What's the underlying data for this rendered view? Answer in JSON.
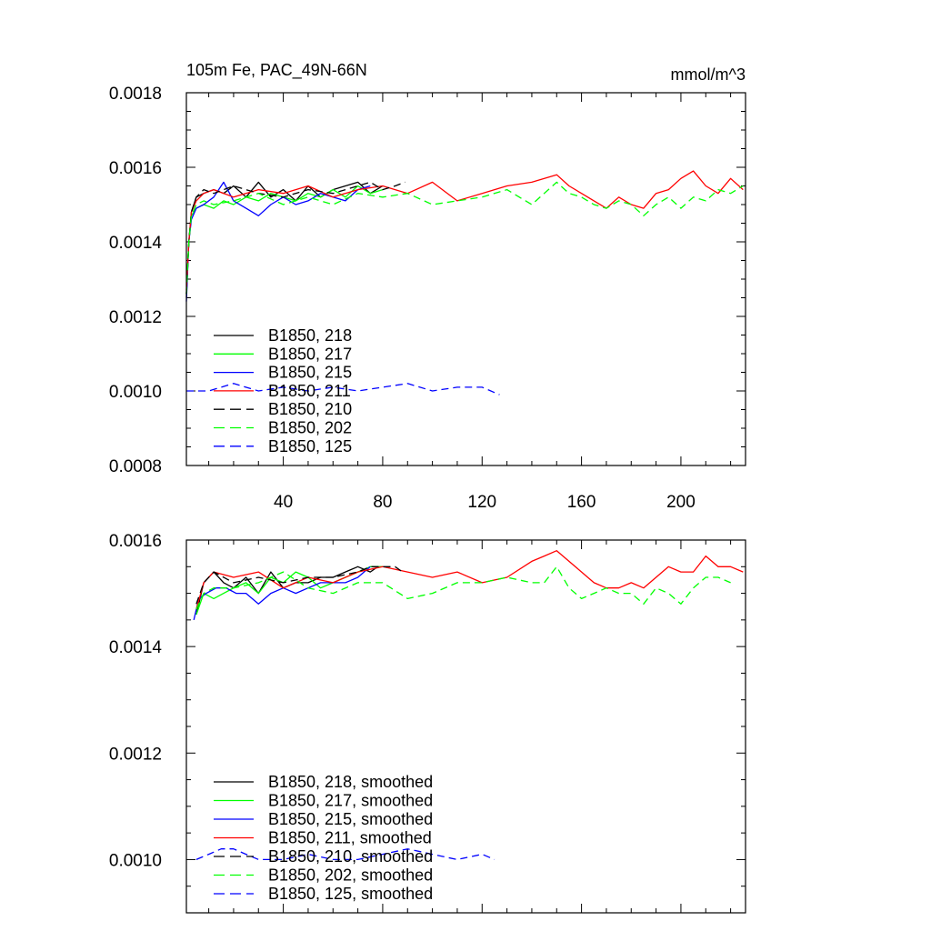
{
  "chart_data": [
    {
      "type": "line",
      "title": "105m Fe, PAC_49N-66N",
      "units": "mmol/m^3",
      "xlim": [
        1,
        226
      ],
      "ylim": [
        0.0008,
        0.0018
      ],
      "x_ticks": [
        "40",
        "80",
        "120",
        "160",
        "200"
      ],
      "y_ticks": [
        "0.0008",
        "0.0010",
        "0.0012",
        "0.0014",
        "0.0016",
        "0.0018"
      ],
      "legend_position": "lower-left",
      "series": [
        {
          "name": "B1850, 218",
          "color": "#000000",
          "dashed": false,
          "x": [
            1,
            2,
            3,
            5,
            8,
            12,
            16,
            20,
            25,
            30,
            35,
            40,
            45,
            50,
            55,
            60,
            65,
            70,
            75,
            80
          ],
          "y": [
            0.00125,
            0.0014,
            0.00148,
            0.00152,
            0.00153,
            0.00154,
            0.00153,
            0.00155,
            0.00152,
            0.00156,
            0.00152,
            0.00154,
            0.00151,
            0.00155,
            0.00152,
            0.00154,
            0.00155,
            0.00156,
            0.00153,
            0.00155
          ]
        },
        {
          "name": "B1850, 217",
          "color": "#00ff00",
          "dashed": false,
          "x": [
            1,
            2,
            3,
            5,
            8,
            12,
            16,
            20,
            25,
            30,
            35,
            40,
            45,
            50,
            55,
            60,
            65,
            70,
            75,
            80
          ],
          "y": [
            0.00126,
            0.0014,
            0.00147,
            0.00149,
            0.0015,
            0.00149,
            0.00151,
            0.0015,
            0.00152,
            0.00151,
            0.00153,
            0.00152,
            0.00151,
            0.00153,
            0.00152,
            0.00154,
            0.00152,
            0.00155,
            0.00153,
            0.00154
          ]
        },
        {
          "name": "B1850, 215",
          "color": "#0000ff",
          "dashed": false,
          "x": [
            1,
            2,
            3,
            5,
            8,
            12,
            16,
            20,
            25,
            30,
            35,
            40,
            45,
            50,
            55,
            60,
            65,
            70,
            75
          ],
          "y": [
            0.00124,
            0.0014,
            0.00146,
            0.00149,
            0.0015,
            0.00152,
            0.00156,
            0.00151,
            0.00149,
            0.00147,
            0.0015,
            0.00152,
            0.0015,
            0.00151,
            0.00153,
            0.00152,
            0.00151,
            0.00154,
            0.00155
          ]
        },
        {
          "name": "B1850, 211",
          "color": "#ff0000",
          "dashed": false,
          "x": [
            1,
            2,
            3,
            5,
            8,
            12,
            20,
            30,
            40,
            50,
            60,
            70,
            80,
            90,
            100,
            110,
            120,
            130,
            140,
            150,
            155,
            160,
            165,
            170,
            175,
            180,
            185,
            190,
            195,
            200,
            205,
            210,
            215,
            220,
            225
          ],
          "y": [
            0.00127,
            0.0014,
            0.00148,
            0.00151,
            0.00153,
            0.00154,
            0.00152,
            0.00154,
            0.00153,
            0.00155,
            0.00152,
            0.00154,
            0.00155,
            0.00153,
            0.00156,
            0.00151,
            0.00153,
            0.00155,
            0.00156,
            0.00158,
            0.00155,
            0.00153,
            0.00151,
            0.00149,
            0.00152,
            0.0015,
            0.00149,
            0.00153,
            0.00154,
            0.00157,
            0.00159,
            0.00155,
            0.00153,
            0.00157,
            0.00154
          ]
        },
        {
          "name": "B1850, 210",
          "color": "#000000",
          "dashed": true,
          "x": [
            1,
            2,
            3,
            5,
            8,
            12,
            20,
            30,
            40,
            50,
            60,
            70,
            75,
            80,
            85,
            89
          ],
          "y": [
            0.00126,
            0.0014,
            0.00148,
            0.00152,
            0.00154,
            0.00153,
            0.00155,
            0.00153,
            0.00152,
            0.00154,
            0.00153,
            0.00155,
            0.00156,
            0.00154,
            0.00155,
            0.00156
          ]
        },
        {
          "name": "B1850, 202",
          "color": "#00ff00",
          "dashed": true,
          "x": [
            1,
            2,
            3,
            5,
            8,
            12,
            20,
            30,
            40,
            50,
            60,
            70,
            80,
            90,
            100,
            110,
            120,
            130,
            140,
            150,
            155,
            160,
            165,
            170,
            175,
            180,
            185,
            190,
            195,
            200,
            205,
            210,
            215,
            220,
            225
          ],
          "y": [
            0.00126,
            0.0014,
            0.00147,
            0.0015,
            0.00151,
            0.0015,
            0.00151,
            0.00153,
            0.0015,
            0.00152,
            0.0015,
            0.00153,
            0.00152,
            0.00153,
            0.0015,
            0.00151,
            0.00152,
            0.00154,
            0.0015,
            0.00156,
            0.00153,
            0.00152,
            0.0015,
            0.00149,
            0.00151,
            0.0015,
            0.00147,
            0.0015,
            0.00152,
            0.00149,
            0.00152,
            0.00151,
            0.00154,
            0.00153,
            0.00155
          ]
        },
        {
          "name": "B1850, 125",
          "color": "#0000ff",
          "dashed": true,
          "x": [
            1,
            10,
            20,
            30,
            40,
            50,
            60,
            70,
            80,
            90,
            100,
            110,
            120,
            127
          ],
          "y": [
            0.001,
            0.001,
            0.00102,
            0.001,
            0.00101,
            0.001,
            0.00101,
            0.001,
            0.00101,
            0.00102,
            0.001,
            0.00101,
            0.00101,
            0.00099
          ]
        }
      ]
    },
    {
      "type": "line",
      "title": "",
      "xlim": [
        1,
        226
      ],
      "ylim": [
        0.0009,
        0.0016
      ],
      "y_ticks": [
        "0.0010",
        "0.0012",
        "0.0014",
        "0.0016"
      ],
      "legend_position": "lower-left",
      "series": [
        {
          "name": "B1850, 218, smoothed",
          "color": "#000000",
          "dashed": false,
          "x": [
            5,
            8,
            12,
            16,
            20,
            25,
            30,
            35,
            40,
            45,
            50,
            55,
            60,
            65,
            70,
            75,
            78
          ],
          "y": [
            0.00146,
            0.00152,
            0.00154,
            0.00152,
            0.00151,
            0.00153,
            0.0015,
            0.00154,
            0.00151,
            0.00152,
            0.00152,
            0.00153,
            0.00153,
            0.00154,
            0.00155,
            0.00154,
            0.00155
          ]
        },
        {
          "name": "B1850, 217, smoothed",
          "color": "#00ff00",
          "dashed": false,
          "x": [
            5,
            8,
            12,
            16,
            20,
            25,
            30,
            35,
            40,
            45,
            50,
            55,
            60,
            65,
            70,
            75,
            80
          ],
          "y": [
            0.00146,
            0.0015,
            0.00149,
            0.0015,
            0.00151,
            0.00152,
            0.0015,
            0.00153,
            0.00152,
            0.00154,
            0.00153,
            0.00151,
            0.00152,
            0.00153,
            0.00154,
            0.00155,
            0.00155
          ]
        },
        {
          "name": "B1850, 215, smoothed",
          "color": "#0000ff",
          "dashed": false,
          "x": [
            4,
            6,
            9,
            13,
            17,
            21,
            25,
            30,
            35,
            40,
            45,
            50,
            55,
            60,
            65,
            70,
            75
          ],
          "y": [
            0.00145,
            0.00149,
            0.0015,
            0.00151,
            0.00151,
            0.0015,
            0.0015,
            0.00148,
            0.0015,
            0.00151,
            0.0015,
            0.00151,
            0.00152,
            0.00152,
            0.00152,
            0.00153,
            0.00155
          ]
        },
        {
          "name": "B1850, 211, smoothed",
          "color": "#ff0000",
          "dashed": false,
          "x": [
            5,
            8,
            12,
            20,
            30,
            40,
            50,
            60,
            70,
            80,
            90,
            100,
            110,
            120,
            130,
            140,
            145,
            150,
            155,
            160,
            165,
            170,
            175,
            180,
            185,
            190,
            195,
            200,
            205,
            210,
            215,
            220,
            225
          ],
          "y": [
            0.00147,
            0.00152,
            0.00154,
            0.00153,
            0.00154,
            0.00151,
            0.00153,
            0.00152,
            0.00154,
            0.00155,
            0.00154,
            0.00153,
            0.00154,
            0.00152,
            0.00153,
            0.00156,
            0.00157,
            0.00158,
            0.00156,
            0.00154,
            0.00152,
            0.00151,
            0.00151,
            0.00152,
            0.00151,
            0.00153,
            0.00155,
            0.00154,
            0.00154,
            0.00157,
            0.00155,
            0.00155,
            0.00154
          ]
        },
        {
          "name": "B1850, 210, smoothed",
          "color": "#000000",
          "dashed": true,
          "x": [
            5,
            8,
            12,
            20,
            30,
            40,
            50,
            60,
            70,
            75,
            80,
            85,
            88
          ],
          "y": [
            0.00148,
            0.00152,
            0.00154,
            0.00152,
            0.00153,
            0.00152,
            0.00153,
            0.00153,
            0.00154,
            0.00155,
            0.00155,
            0.00155,
            0.00154
          ]
        },
        {
          "name": "B1850, 202, smoothed",
          "color": "#00ff00",
          "dashed": true,
          "x": [
            5,
            8,
            12,
            20,
            30,
            40,
            50,
            60,
            70,
            80,
            90,
            100,
            110,
            120,
            130,
            140,
            145,
            150,
            155,
            160,
            165,
            170,
            175,
            180,
            185,
            190,
            195,
            200,
            205,
            210,
            215,
            220
          ],
          "y": [
            0.00147,
            0.0015,
            0.00151,
            0.00151,
            0.00152,
            0.00154,
            0.00151,
            0.0015,
            0.00152,
            0.00152,
            0.00149,
            0.0015,
            0.00152,
            0.00152,
            0.00153,
            0.00152,
            0.00152,
            0.00155,
            0.00151,
            0.00149,
            0.0015,
            0.00151,
            0.0015,
            0.0015,
            0.00148,
            0.00151,
            0.0015,
            0.00148,
            0.00151,
            0.00153,
            0.00153,
            0.00152
          ]
        },
        {
          "name": "B1850, 125, smoothed",
          "color": "#0000ff",
          "dashed": true,
          "x": [
            5,
            10,
            15,
            20,
            25,
            30,
            40,
            50,
            60,
            70,
            80,
            90,
            100,
            110,
            120,
            125
          ],
          "y": [
            0.001,
            0.00101,
            0.00102,
            0.00102,
            0.00101,
            0.001,
            0.001,
            0.00101,
            0.001,
            0.001,
            0.00101,
            0.00102,
            0.00101,
            0.001,
            0.00101,
            0.001
          ]
        }
      ]
    }
  ]
}
